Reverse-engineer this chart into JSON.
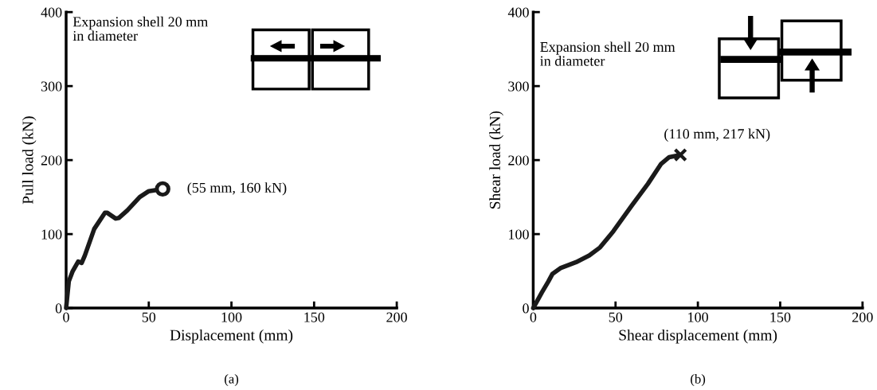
{
  "chart_data": [
    {
      "type": "line",
      "xlabel": "Displacement (mm)",
      "ylabel": "Pull load (kN)",
      "xlim": [
        0,
        200
      ],
      "xticks": [
        0,
        50,
        100,
        150,
        200
      ],
      "ylim": [
        0,
        400
      ],
      "yticks": [
        0,
        100,
        200,
        300,
        400
      ],
      "grid": false,
      "line_style": "solid",
      "series": [
        {
          "color": "#1a1a1a",
          "marker": "none",
          "x": [
            0,
            1.6,
            4,
            7.3,
            9.4,
            11.3,
            17,
            23.5,
            24.7,
            30,
            32,
            37,
            44.5,
            50,
            58.4
          ],
          "values": [
            0,
            36,
            50,
            63,
            61,
            71,
            107,
            129,
            129,
            121,
            122,
            132,
            150,
            158,
            161
          ]
        },
        {
          "type": "scatter",
          "color": "#1a1a1a",
          "marker": "circle",
          "x": [
            58.4
          ],
          "values": [
            161
          ]
        }
      ],
      "annotations": [
        {
          "text": "(55 mm, 160 kN)",
          "x": 58.4,
          "y": 161
        },
        "Expansion shell 20 mm\nin diameter",
        "(a)"
      ]
    },
    {
      "type": "line",
      "xlabel": "Shear displacement (mm)",
      "ylabel": "Shear load (kN)",
      "xlim": [
        0,
        200
      ],
      "xticks": [
        0,
        50,
        100,
        150,
        200
      ],
      "ylim": [
        0,
        400
      ],
      "yticks": [
        0,
        100,
        200,
        300,
        400
      ],
      "grid": false,
      "line_style": "solid",
      "series": [
        {
          "color": "#1a1a1a",
          "marker": "none",
          "x": [
            0,
            5.2,
            9.2,
            11.6,
            16.5,
            26,
            34,
            40.6,
            48.7,
            60,
            69.7,
            77.7,
            82.6,
            89.4
          ],
          "values": [
            0,
            21,
            36,
            46,
            54,
            62,
            71,
            82,
            104,
            139,
            168,
            195,
            204,
            207
          ]
        },
        {
          "type": "scatter",
          "color": "#1a1a1a",
          "marker": "cross",
          "x": [
            89.4
          ],
          "values": [
            207
          ]
        }
      ],
      "annotations": [
        {
          "text": "(110 mm, 217 kN)",
          "x": 89.4,
          "y": 207
        },
        "Expansion shell 20 mm\nin diameter",
        "(b)"
      ]
    }
  ]
}
